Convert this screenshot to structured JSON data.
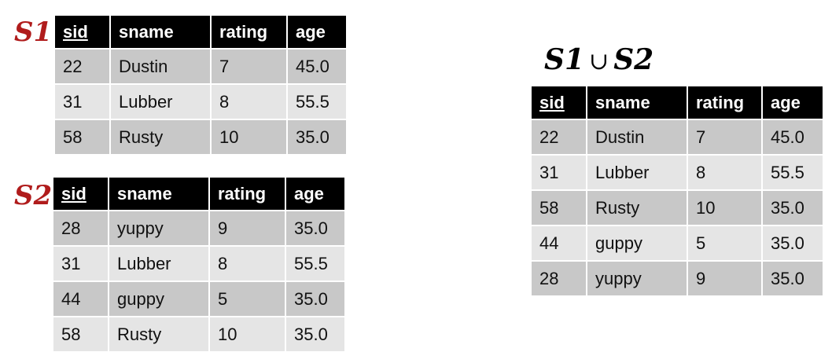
{
  "s1": {
    "label": "S1",
    "columns": [
      "sid",
      "sname",
      "rating",
      "age"
    ],
    "rows": [
      [
        "22",
        "Dustin",
        "7",
        "45.0"
      ],
      [
        "31",
        "Lubber",
        "8",
        "55.5"
      ],
      [
        "58",
        "Rusty",
        "10",
        "35.0"
      ]
    ]
  },
  "s2": {
    "label": "S2",
    "columns": [
      "sid",
      "sname",
      "rating",
      "age"
    ],
    "rows": [
      [
        "28",
        "yuppy",
        "9",
        "35.0"
      ],
      [
        "31",
        "Lubber",
        "8",
        "55.5"
      ],
      [
        "44",
        "guppy",
        "5",
        "35.0"
      ],
      [
        "58",
        "Rusty",
        "10",
        "35.0"
      ]
    ]
  },
  "union": {
    "title_left": "S1",
    "operator": "∪",
    "title_right": "S2",
    "columns": [
      "sid",
      "sname",
      "rating",
      "age"
    ],
    "rows": [
      [
        "22",
        "Dustin",
        "7",
        "45.0"
      ],
      [
        "31",
        "Lubber",
        "8",
        "55.5"
      ],
      [
        "58",
        "Rusty",
        "10",
        "35.0"
      ],
      [
        "44",
        "guppy",
        "5",
        "35.0"
      ],
      [
        "28",
        "yuppy",
        "9",
        "35.0"
      ]
    ]
  },
  "colors": {
    "label": "#b01c1c",
    "header_bg": "#000000",
    "row_odd": "#c8c8c8",
    "row_even": "#e5e5e5"
  }
}
